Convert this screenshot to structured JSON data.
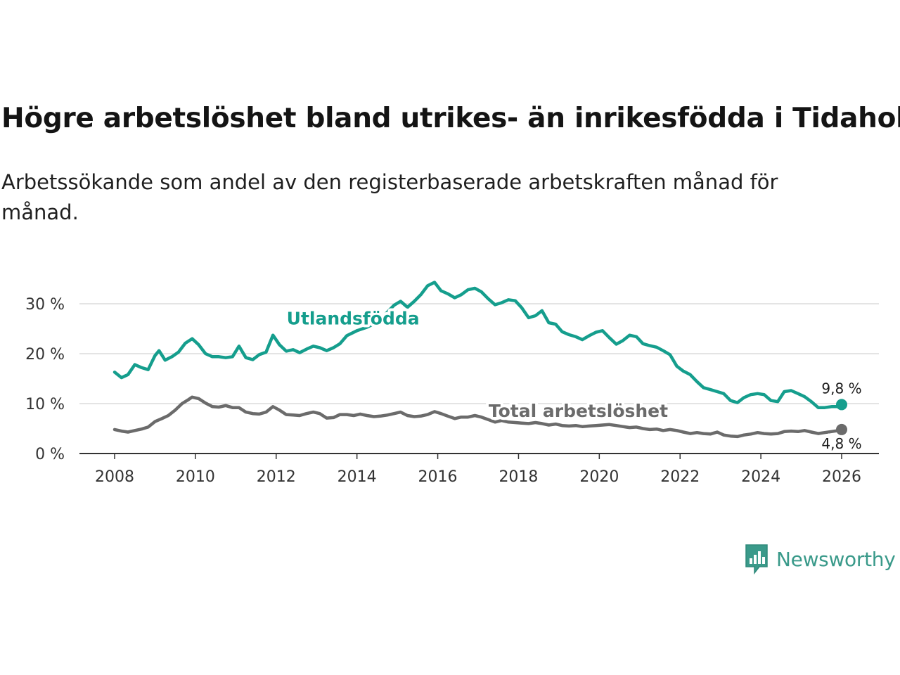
{
  "title": "Högre arbetslöshet bland utrikes- än inrikesfödda i Tidaholm",
  "subtitle": "Arbetssökande som andel av den registerbaserade arbetskraften månad för månad.",
  "brand": {
    "name": "Newsworthy",
    "icon": "newsworthy-logo-icon",
    "color": "#3a9a8a"
  },
  "chart_data": {
    "type": "line",
    "title": "Högre arbetslöshet bland utrikes- än inrikesfödda i Tidaholm",
    "xlabel": "",
    "ylabel": "",
    "xlim": [
      2007.9,
      2026.9
    ],
    "ylim": [
      0,
      30
    ],
    "grid": true,
    "x_ticks": [
      2008,
      2010,
      2012,
      2014,
      2016,
      2018,
      2020,
      2022,
      2024,
      2026
    ],
    "x_tick_labels": [
      "2008",
      "2010",
      "2012",
      "2014",
      "2016",
      "2018",
      "2020",
      "2022",
      "2024",
      "2026"
    ],
    "y_ticks": [
      0,
      10,
      20,
      30
    ],
    "y_tick_labels": [
      "0 %",
      "10 %",
      "20 %",
      "30 %"
    ],
    "series": [
      {
        "name": "Utlandsfödda",
        "color": "#159e8d",
        "end_label": "9,8 %",
        "points": [
          [
            2008.0,
            16.3
          ],
          [
            2008.17,
            15.2
          ],
          [
            2008.33,
            15.8
          ],
          [
            2008.5,
            17.8
          ],
          [
            2008.67,
            17.2
          ],
          [
            2008.83,
            16.8
          ],
          [
            2009.0,
            19.6
          ],
          [
            2009.1,
            20.6
          ],
          [
            2009.25,
            18.7
          ],
          [
            2009.42,
            19.4
          ],
          [
            2009.58,
            20.3
          ],
          [
            2009.75,
            22.1
          ],
          [
            2009.92,
            23.0
          ],
          [
            2010.08,
            21.8
          ],
          [
            2010.25,
            20.0
          ],
          [
            2010.42,
            19.4
          ],
          [
            2010.58,
            19.4
          ],
          [
            2010.75,
            19.2
          ],
          [
            2010.92,
            19.4
          ],
          [
            2011.08,
            21.5
          ],
          [
            2011.25,
            19.2
          ],
          [
            2011.42,
            18.8
          ],
          [
            2011.58,
            19.8
          ],
          [
            2011.75,
            20.3
          ],
          [
            2011.92,
            23.7
          ],
          [
            2012.08,
            21.8
          ],
          [
            2012.25,
            20.5
          ],
          [
            2012.42,
            20.8
          ],
          [
            2012.58,
            20.2
          ],
          [
            2012.75,
            20.9
          ],
          [
            2012.92,
            21.5
          ],
          [
            2013.08,
            21.2
          ],
          [
            2013.25,
            20.6
          ],
          [
            2013.42,
            21.2
          ],
          [
            2013.58,
            22.0
          ],
          [
            2013.75,
            23.6
          ],
          [
            2014.0,
            24.6
          ],
          [
            2014.25,
            25.3
          ],
          [
            2014.5,
            26.3
          ],
          [
            2014.75,
            28.3
          ],
          [
            2014.92,
            29.7
          ],
          [
            2015.08,
            30.5
          ],
          [
            2015.25,
            29.3
          ],
          [
            2015.42,
            30.5
          ],
          [
            2015.58,
            31.8
          ],
          [
            2015.75,
            33.6
          ],
          [
            2015.92,
            34.3
          ],
          [
            2016.08,
            32.6
          ],
          [
            2016.25,
            32.0
          ],
          [
            2016.42,
            31.2
          ],
          [
            2016.58,
            31.8
          ],
          [
            2016.75,
            32.8
          ],
          [
            2016.92,
            33.1
          ],
          [
            2017.08,
            32.4
          ],
          [
            2017.25,
            31.0
          ],
          [
            2017.42,
            29.8
          ],
          [
            2017.58,
            30.2
          ],
          [
            2017.75,
            30.8
          ],
          [
            2017.92,
            30.6
          ],
          [
            2018.08,
            29.2
          ],
          [
            2018.25,
            27.2
          ],
          [
            2018.42,
            27.6
          ],
          [
            2018.58,
            28.6
          ],
          [
            2018.75,
            26.2
          ],
          [
            2018.92,
            25.9
          ],
          [
            2019.08,
            24.4
          ],
          [
            2019.25,
            23.8
          ],
          [
            2019.42,
            23.4
          ],
          [
            2019.58,
            22.8
          ],
          [
            2019.75,
            23.6
          ],
          [
            2019.92,
            24.3
          ],
          [
            2020.08,
            24.6
          ],
          [
            2020.25,
            23.2
          ],
          [
            2020.42,
            21.9
          ],
          [
            2020.58,
            22.6
          ],
          [
            2020.75,
            23.7
          ],
          [
            2020.92,
            23.4
          ],
          [
            2021.08,
            22.0
          ],
          [
            2021.25,
            21.6
          ],
          [
            2021.42,
            21.3
          ],
          [
            2021.58,
            20.6
          ],
          [
            2021.75,
            19.8
          ],
          [
            2021.92,
            17.5
          ],
          [
            2022.08,
            16.5
          ],
          [
            2022.25,
            15.8
          ],
          [
            2022.42,
            14.4
          ],
          [
            2022.58,
            13.2
          ],
          [
            2022.75,
            12.8
          ],
          [
            2022.92,
            12.4
          ],
          [
            2023.08,
            12.0
          ],
          [
            2023.25,
            10.6
          ],
          [
            2023.42,
            10.2
          ],
          [
            2023.58,
            11.2
          ],
          [
            2023.75,
            11.8
          ],
          [
            2023.92,
            12.0
          ],
          [
            2024.08,
            11.8
          ],
          [
            2024.25,
            10.6
          ],
          [
            2024.42,
            10.4
          ],
          [
            2024.58,
            12.4
          ],
          [
            2024.75,
            12.6
          ],
          [
            2024.92,
            12.0
          ],
          [
            2025.08,
            11.4
          ],
          [
            2025.25,
            10.4
          ],
          [
            2025.42,
            9.2
          ],
          [
            2025.58,
            9.2
          ],
          [
            2025.75,
            9.4
          ],
          [
            2025.92,
            9.4
          ],
          [
            2026.0,
            9.8
          ]
        ]
      },
      {
        "name": "Total arbetslöshet",
        "color": "#6b6b6b",
        "end_label": "4,8 %",
        "points": [
          [
            2008.0,
            4.8
          ],
          [
            2008.17,
            4.5
          ],
          [
            2008.33,
            4.3
          ],
          [
            2008.5,
            4.6
          ],
          [
            2008.67,
            4.9
          ],
          [
            2008.83,
            5.3
          ],
          [
            2009.0,
            6.4
          ],
          [
            2009.17,
            7.0
          ],
          [
            2009.33,
            7.6
          ],
          [
            2009.5,
            8.7
          ],
          [
            2009.67,
            10.0
          ],
          [
            2009.83,
            10.8
          ],
          [
            2009.92,
            11.3
          ],
          [
            2010.08,
            11.0
          ],
          [
            2010.25,
            10.1
          ],
          [
            2010.42,
            9.4
          ],
          [
            2010.58,
            9.3
          ],
          [
            2010.75,
            9.6
          ],
          [
            2010.92,
            9.2
          ],
          [
            2011.08,
            9.2
          ],
          [
            2011.25,
            8.3
          ],
          [
            2011.42,
            8.0
          ],
          [
            2011.58,
            7.9
          ],
          [
            2011.75,
            8.3
          ],
          [
            2011.92,
            9.4
          ],
          [
            2012.08,
            8.7
          ],
          [
            2012.25,
            7.8
          ],
          [
            2012.42,
            7.7
          ],
          [
            2012.58,
            7.6
          ],
          [
            2012.75,
            8.0
          ],
          [
            2012.92,
            8.3
          ],
          [
            2013.08,
            8.0
          ],
          [
            2013.25,
            7.1
          ],
          [
            2013.42,
            7.2
          ],
          [
            2013.58,
            7.8
          ],
          [
            2013.75,
            7.8
          ],
          [
            2013.92,
            7.6
          ],
          [
            2014.08,
            7.9
          ],
          [
            2014.25,
            7.6
          ],
          [
            2014.42,
            7.4
          ],
          [
            2014.58,
            7.5
          ],
          [
            2014.75,
            7.7
          ],
          [
            2014.92,
            8.0
          ],
          [
            2015.08,
            8.3
          ],
          [
            2015.25,
            7.6
          ],
          [
            2015.42,
            7.4
          ],
          [
            2015.58,
            7.5
          ],
          [
            2015.75,
            7.8
          ],
          [
            2015.92,
            8.4
          ],
          [
            2016.08,
            8.0
          ],
          [
            2016.25,
            7.5
          ],
          [
            2016.42,
            7.0
          ],
          [
            2016.58,
            7.3
          ],
          [
            2016.75,
            7.3
          ],
          [
            2016.92,
            7.6
          ],
          [
            2017.08,
            7.3
          ],
          [
            2017.25,
            6.8
          ],
          [
            2017.42,
            6.3
          ],
          [
            2017.58,
            6.6
          ],
          [
            2017.75,
            6.3
          ],
          [
            2017.92,
            6.2
          ],
          [
            2018.08,
            6.1
          ],
          [
            2018.25,
            6.0
          ],
          [
            2018.42,
            6.2
          ],
          [
            2018.58,
            6.0
          ],
          [
            2018.75,
            5.7
          ],
          [
            2018.92,
            5.9
          ],
          [
            2019.08,
            5.6
          ],
          [
            2019.25,
            5.5
          ],
          [
            2019.42,
            5.6
          ],
          [
            2019.58,
            5.4
          ],
          [
            2019.75,
            5.5
          ],
          [
            2019.92,
            5.6
          ],
          [
            2020.08,
            5.7
          ],
          [
            2020.25,
            5.8
          ],
          [
            2020.42,
            5.6
          ],
          [
            2020.58,
            5.4
          ],
          [
            2020.75,
            5.2
          ],
          [
            2020.92,
            5.3
          ],
          [
            2021.08,
            5.0
          ],
          [
            2021.25,
            4.8
          ],
          [
            2021.42,
            4.9
          ],
          [
            2021.58,
            4.6
          ],
          [
            2021.75,
            4.8
          ],
          [
            2021.92,
            4.6
          ],
          [
            2022.08,
            4.3
          ],
          [
            2022.25,
            4.0
          ],
          [
            2022.42,
            4.2
          ],
          [
            2022.58,
            4.0
          ],
          [
            2022.75,
            3.9
          ],
          [
            2022.92,
            4.3
          ],
          [
            2023.08,
            3.7
          ],
          [
            2023.25,
            3.5
          ],
          [
            2023.42,
            3.4
          ],
          [
            2023.58,
            3.7
          ],
          [
            2023.75,
            3.9
          ],
          [
            2023.92,
            4.2
          ],
          [
            2024.08,
            4.0
          ],
          [
            2024.25,
            3.9
          ],
          [
            2024.42,
            4.0
          ],
          [
            2024.58,
            4.4
          ],
          [
            2024.75,
            4.5
          ],
          [
            2024.92,
            4.4
          ],
          [
            2025.08,
            4.6
          ],
          [
            2025.25,
            4.3
          ],
          [
            2025.42,
            4.0
          ],
          [
            2025.58,
            4.2
          ],
          [
            2025.75,
            4.4
          ],
          [
            2025.92,
            4.6
          ],
          [
            2026.0,
            4.8
          ]
        ]
      }
    ],
    "annotations": [
      {
        "text": "Utlandsfödda",
        "series": "Utlandsfödda",
        "at_x": 2014.0,
        "at_y": 25.0
      },
      {
        "text": "Total arbetslöshet",
        "series": "Total arbetslöshet",
        "at_x": 2019.0,
        "at_y": 6.5
      }
    ]
  }
}
